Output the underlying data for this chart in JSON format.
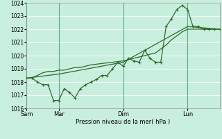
{
  "xlabel": "Pression niveau de la mer( hPa )",
  "background_color": "#c8eedd",
  "grid_color": "#ffffff",
  "line_color": "#2d6a2d",
  "ylim": [
    1016,
    1024
  ],
  "yticks": [
    1016,
    1017,
    1018,
    1019,
    1020,
    1021,
    1022,
    1023,
    1024
  ],
  "day_labels": [
    "Sam",
    "Mar",
    "Dim",
    "Lun"
  ],
  "day_positions": [
    0,
    36,
    108,
    180
  ],
  "total_hours": 216,
  "vline_color": "#5aaa88",
  "series1_x": [
    0,
    6,
    12,
    18,
    24,
    30,
    36,
    42,
    48,
    54,
    60,
    66,
    72,
    78,
    84,
    90,
    96,
    102,
    108,
    114,
    120,
    126,
    132,
    138,
    144,
    150,
    156,
    162,
    168,
    174,
    180,
    186,
    192,
    198,
    204,
    210,
    216
  ],
  "series1_y": [
    1018.3,
    1018.3,
    1018.0,
    1017.8,
    1017.8,
    1016.6,
    1016.6,
    1017.5,
    1017.2,
    1016.8,
    1017.5,
    1017.8,
    1018.0,
    1018.2,
    1018.5,
    1018.5,
    1019.0,
    1019.5,
    1019.2,
    1019.8,
    1019.6,
    1019.5,
    1020.4,
    1019.8,
    1019.5,
    1019.5,
    1022.2,
    1022.8,
    1023.5,
    1023.8,
    1023.5,
    1022.2,
    1022.2,
    1022.0,
    1022.0,
    1022.0,
    1022.0
  ],
  "series2_x": [
    0,
    6,
    12,
    18,
    24,
    30,
    36,
    42,
    48,
    54,
    60,
    66,
    72,
    78,
    84,
    90,
    96,
    102,
    108,
    114,
    120,
    126,
    132,
    138,
    144,
    150,
    156,
    162,
    168,
    174,
    180,
    186,
    192,
    198,
    204,
    210,
    216
  ],
  "series2_y": [
    1018.3,
    1018.3,
    1018.5,
    1018.7,
    1018.8,
    1018.8,
    1018.9,
    1018.9,
    1019.0,
    1019.1,
    1019.1,
    1019.2,
    1019.3,
    1019.35,
    1019.4,
    1019.45,
    1019.5,
    1019.55,
    1019.6,
    1019.7,
    1019.8,
    1019.9,
    1020.0,
    1020.1,
    1020.2,
    1020.5,
    1020.8,
    1021.2,
    1021.5,
    1021.8,
    1022.0,
    1022.0,
    1022.0,
    1022.0,
    1022.0,
    1022.0,
    1022.0
  ],
  "series3_x": [
    0,
    36,
    108,
    180,
    216
  ],
  "series3_y": [
    1018.3,
    1018.6,
    1019.5,
    1022.2,
    1022.0
  ]
}
